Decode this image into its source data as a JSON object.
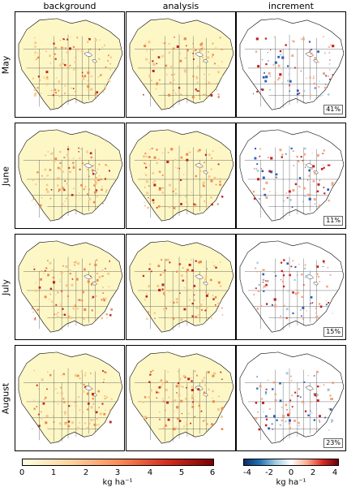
{
  "columns": [
    "background",
    "analysis",
    "increment"
  ],
  "rows": [
    {
      "label": "May",
      "increment_pct": "41%"
    },
    {
      "label": "June",
      "increment_pct": "11%"
    },
    {
      "label": "July",
      "increment_pct": "15%"
    },
    {
      "label": "August",
      "increment_pct": "23%"
    }
  ],
  "colorbars": [
    {
      "name": "background-analysis",
      "ticks": [
        "0",
        "1",
        "2",
        "3",
        "4",
        "5",
        "6"
      ],
      "unit": "kg ha⁻¹",
      "colors": [
        "#ffffe0",
        "#fdd49e",
        "#fc8d59",
        "#d7301f",
        "#7f0000"
      ]
    },
    {
      "name": "increment",
      "ticks": [
        "-4",
        "-2",
        "0",
        "2",
        "4"
      ],
      "unit": "kg ha⁻¹",
      "colors": [
        "#08306b",
        "#2171b5",
        "#9ecae1",
        "#ffffff",
        "#fcae91",
        "#de2d26",
        "#67000d"
      ]
    }
  ]
}
